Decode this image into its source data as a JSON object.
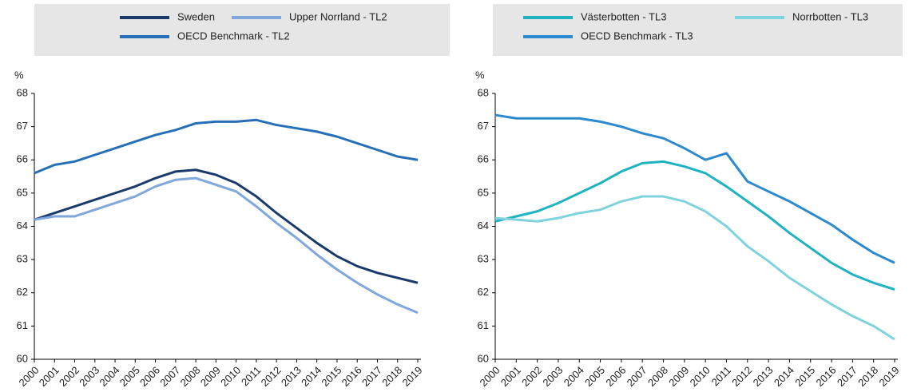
{
  "chart_data": [
    {
      "type": "line",
      "y_label": "%",
      "categories": [
        "2000",
        "2001",
        "2002",
        "2003",
        "2004",
        "2005",
        "2006",
        "2007",
        "2008",
        "2009",
        "2010",
        "2011",
        "2012",
        "2013",
        "2014",
        "2015",
        "2016",
        "2017",
        "2018",
        "2019"
      ],
      "series": [
        {
          "name": "Sweden",
          "color": "#1a3a6b",
          "values": [
            64.2,
            64.4,
            64.6,
            64.8,
            65.0,
            65.2,
            65.45,
            65.65,
            65.7,
            65.55,
            65.3,
            64.9,
            64.4,
            63.95,
            63.5,
            63.1,
            62.8,
            62.6,
            62.45,
            62.3
          ]
        },
        {
          "name": "Upper Norrland - TL2",
          "color": "#7fa7dc",
          "values": [
            64.2,
            64.3,
            64.3,
            64.5,
            64.7,
            64.9,
            65.2,
            65.4,
            65.45,
            65.25,
            65.05,
            64.6,
            64.1,
            63.65,
            63.15,
            62.7,
            62.3,
            61.95,
            61.65,
            61.4
          ]
        },
        {
          "name": "OECD Benchmark - TL2",
          "color": "#2770b8",
          "values": [
            65.6,
            65.85,
            65.95,
            66.15,
            66.35,
            66.55,
            66.75,
            66.9,
            67.1,
            67.15,
            67.15,
            67.2,
            67.05,
            66.95,
            66.85,
            66.7,
            66.5,
            66.3,
            66.1,
            66.0
          ]
        }
      ],
      "ylim": [
        60,
        68
      ],
      "yticks": [
        60,
        61,
        62,
        63,
        64,
        65,
        66,
        67,
        68
      ]
    },
    {
      "type": "line",
      "y_label": "%",
      "categories": [
        "2000",
        "2001",
        "2002",
        "2003",
        "2004",
        "2005",
        "2006",
        "2007",
        "2008",
        "2009",
        "2010",
        "2011",
        "2012",
        "2013",
        "2014",
        "2015",
        "2016",
        "2017",
        "2018",
        "2019"
      ],
      "series": [
        {
          "name": "Västerbotten - TL3",
          "color": "#1fb3c2",
          "values": [
            64.15,
            64.3,
            64.45,
            64.7,
            65.0,
            65.3,
            65.65,
            65.9,
            65.95,
            65.8,
            65.6,
            65.2,
            64.75,
            64.3,
            63.8,
            63.35,
            62.9,
            62.55,
            62.3,
            62.1
          ]
        },
        {
          "name": "Norrbotten - TL3",
          "color": "#7fd3dd",
          "values": [
            64.25,
            64.2,
            64.15,
            64.25,
            64.4,
            64.5,
            64.75,
            64.9,
            64.9,
            64.75,
            64.45,
            64.0,
            63.4,
            62.95,
            62.45,
            62.05,
            61.65,
            61.3,
            61.0,
            60.6
          ]
        },
        {
          "name": "OECD Benchmark - TL3",
          "color": "#2b8ad0",
          "values": [
            67.35,
            67.25,
            67.25,
            67.25,
            67.25,
            67.15,
            67.0,
            66.8,
            66.65,
            66.35,
            66.0,
            66.2,
            65.35,
            65.05,
            64.75,
            64.4,
            64.05,
            63.6,
            63.2,
            62.9
          ]
        }
      ],
      "ylim": [
        60,
        68
      ],
      "yticks": [
        60,
        61,
        62,
        63,
        64,
        65,
        66,
        67,
        68
      ]
    }
  ]
}
